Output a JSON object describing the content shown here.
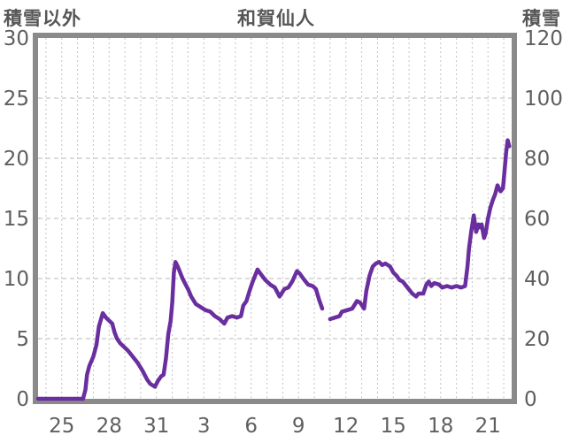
{
  "header": {
    "left_axis_title": "積雪以外",
    "chart_title": "和賀仙人",
    "right_axis_title": "積雪"
  },
  "colors": {
    "line": "#6a2f9f",
    "border": "#8a8a8a",
    "v_grid": "#c4c4c4",
    "h_grid": "#b8b8b8",
    "text": "#5f5f5f"
  },
  "chart_data": {
    "type": "line",
    "title": "和賀仙人",
    "station": "和賀仙人",
    "left_axis": {
      "label": "積雪以外",
      "min": 0,
      "max": 30,
      "ticks": [
        0,
        5,
        10,
        15,
        20,
        25,
        30
      ]
    },
    "right_axis": {
      "label": "積雪",
      "unit_note": "right axis = 4 x left axis",
      "min": 0,
      "max": 120,
      "ticks": [
        0,
        20,
        40,
        60,
        80,
        100,
        120
      ]
    },
    "x_axis": {
      "domain_days": [
        23.5,
        53.5
      ],
      "day_gridline_step": 1,
      "tick_days": [
        25,
        28,
        31,
        34,
        37,
        40,
        43,
        46,
        49,
        52
      ],
      "tick_labels": [
        "25",
        "28",
        "31",
        "3",
        "6",
        "9",
        "12",
        "15",
        "18",
        "21"
      ]
    },
    "grid": true,
    "legend": "none",
    "series": [
      {
        "name": "積雪",
        "axis": "right",
        "color": "#6a2f9f",
        "gap_note": "no data between day 41.5 and 42.0 (Jan 10-11)",
        "segments": [
          [
            [
              23.5,
              0
            ],
            [
              26.35,
              0
            ],
            [
              26.5,
              3
            ],
            [
              26.6,
              8
            ],
            [
              26.75,
              11
            ],
            [
              27.0,
              14
            ],
            [
              27.2,
              18
            ],
            [
              27.35,
              24
            ],
            [
              27.6,
              28.5
            ],
            [
              27.8,
              27
            ],
            [
              28.0,
              26
            ],
            [
              28.2,
              25
            ],
            [
              28.35,
              22
            ],
            [
              28.5,
              20
            ],
            [
              28.7,
              18.5
            ],
            [
              29.0,
              17
            ],
            [
              29.2,
              16
            ],
            [
              29.5,
              14
            ],
            [
              29.8,
              12
            ],
            [
              30.1,
              9.5
            ],
            [
              30.4,
              6.5
            ],
            [
              30.6,
              5
            ],
            [
              30.9,
              4
            ],
            [
              31.1,
              6
            ],
            [
              31.3,
              7.5
            ],
            [
              31.45,
              8
            ],
            [
              31.6,
              13.5
            ],
            [
              31.75,
              21.5
            ],
            [
              31.9,
              26
            ],
            [
              32.0,
              32
            ],
            [
              32.1,
              42
            ],
            [
              32.2,
              45.5
            ],
            [
              32.35,
              44
            ],
            [
              32.5,
              42
            ],
            [
              32.65,
              40
            ],
            [
              32.8,
              38.5
            ],
            [
              33.0,
              36.5
            ],
            [
              33.2,
              34
            ],
            [
              33.5,
              31.5
            ],
            [
              33.8,
              30.5
            ],
            [
              34.1,
              29.5
            ],
            [
              34.4,
              29
            ],
            [
              34.7,
              27.5
            ],
            [
              35.0,
              26.5
            ],
            [
              35.3,
              25
            ],
            [
              35.5,
              27
            ],
            [
              35.8,
              27.5
            ],
            [
              36.1,
              27
            ],
            [
              36.35,
              27.5
            ],
            [
              36.5,
              31
            ],
            [
              36.7,
              32.5
            ],
            [
              36.9,
              36
            ],
            [
              37.1,
              39
            ],
            [
              37.4,
              43
            ],
            [
              37.6,
              41.5
            ],
            [
              37.9,
              39.5
            ],
            [
              38.2,
              38
            ],
            [
              38.5,
              37
            ],
            [
              38.8,
              34
            ],
            [
              39.1,
              36.5
            ],
            [
              39.35,
              37
            ],
            [
              39.6,
              39
            ],
            [
              39.9,
              42.5
            ],
            [
              40.1,
              41.5
            ],
            [
              40.3,
              40
            ],
            [
              40.6,
              38
            ],
            [
              40.9,
              37.5
            ],
            [
              41.1,
              36.5
            ],
            [
              41.3,
              33
            ],
            [
              41.5,
              30
            ]
          ],
          [
            [
              42.0,
              26.5
            ],
            [
              42.3,
              27
            ],
            [
              42.6,
              27.5
            ],
            [
              42.75,
              29
            ],
            [
              43.1,
              29.5
            ],
            [
              43.4,
              30
            ],
            [
              43.7,
              32.5
            ],
            [
              43.9,
              32
            ],
            [
              44.15,
              30
            ],
            [
              44.3,
              36
            ],
            [
              44.5,
              41
            ],
            [
              44.7,
              44
            ],
            [
              44.9,
              45
            ],
            [
              45.1,
              45.5
            ],
            [
              45.3,
              44.5
            ],
            [
              45.5,
              45
            ],
            [
              45.8,
              44
            ],
            [
              46.0,
              42
            ],
            [
              46.2,
              41
            ],
            [
              46.4,
              39.5
            ],
            [
              46.6,
              39
            ],
            [
              46.9,
              37
            ],
            [
              47.2,
              35
            ],
            [
              47.45,
              34
            ],
            [
              47.6,
              35
            ],
            [
              47.9,
              35
            ],
            [
              48.1,
              38
            ],
            [
              48.25,
              39
            ],
            [
              48.4,
              37.5
            ],
            [
              48.6,
              38.5
            ],
            [
              48.9,
              38
            ],
            [
              49.1,
              37
            ],
            [
              49.4,
              37.5
            ],
            [
              49.7,
              37
            ],
            [
              50.0,
              37.5
            ],
            [
              50.3,
              37
            ],
            [
              50.55,
              37.5
            ],
            [
              50.7,
              44
            ],
            [
              50.8,
              50
            ],
            [
              50.95,
              56
            ],
            [
              51.1,
              61
            ],
            [
              51.25,
              55.5
            ],
            [
              51.4,
              58
            ],
            [
              51.5,
              57
            ],
            [
              51.6,
              58
            ],
            [
              51.75,
              53.5
            ],
            [
              51.85,
              55
            ],
            [
              52.0,
              60
            ],
            [
              52.15,
              63.5
            ],
            [
              52.3,
              66
            ],
            [
              52.45,
              68
            ],
            [
              52.6,
              71
            ],
            [
              52.8,
              69
            ],
            [
              52.95,
              70
            ],
            [
              53.05,
              76
            ],
            [
              53.15,
              82
            ],
            [
              53.25,
              86
            ],
            [
              53.35,
              84
            ]
          ]
        ]
      }
    ]
  }
}
